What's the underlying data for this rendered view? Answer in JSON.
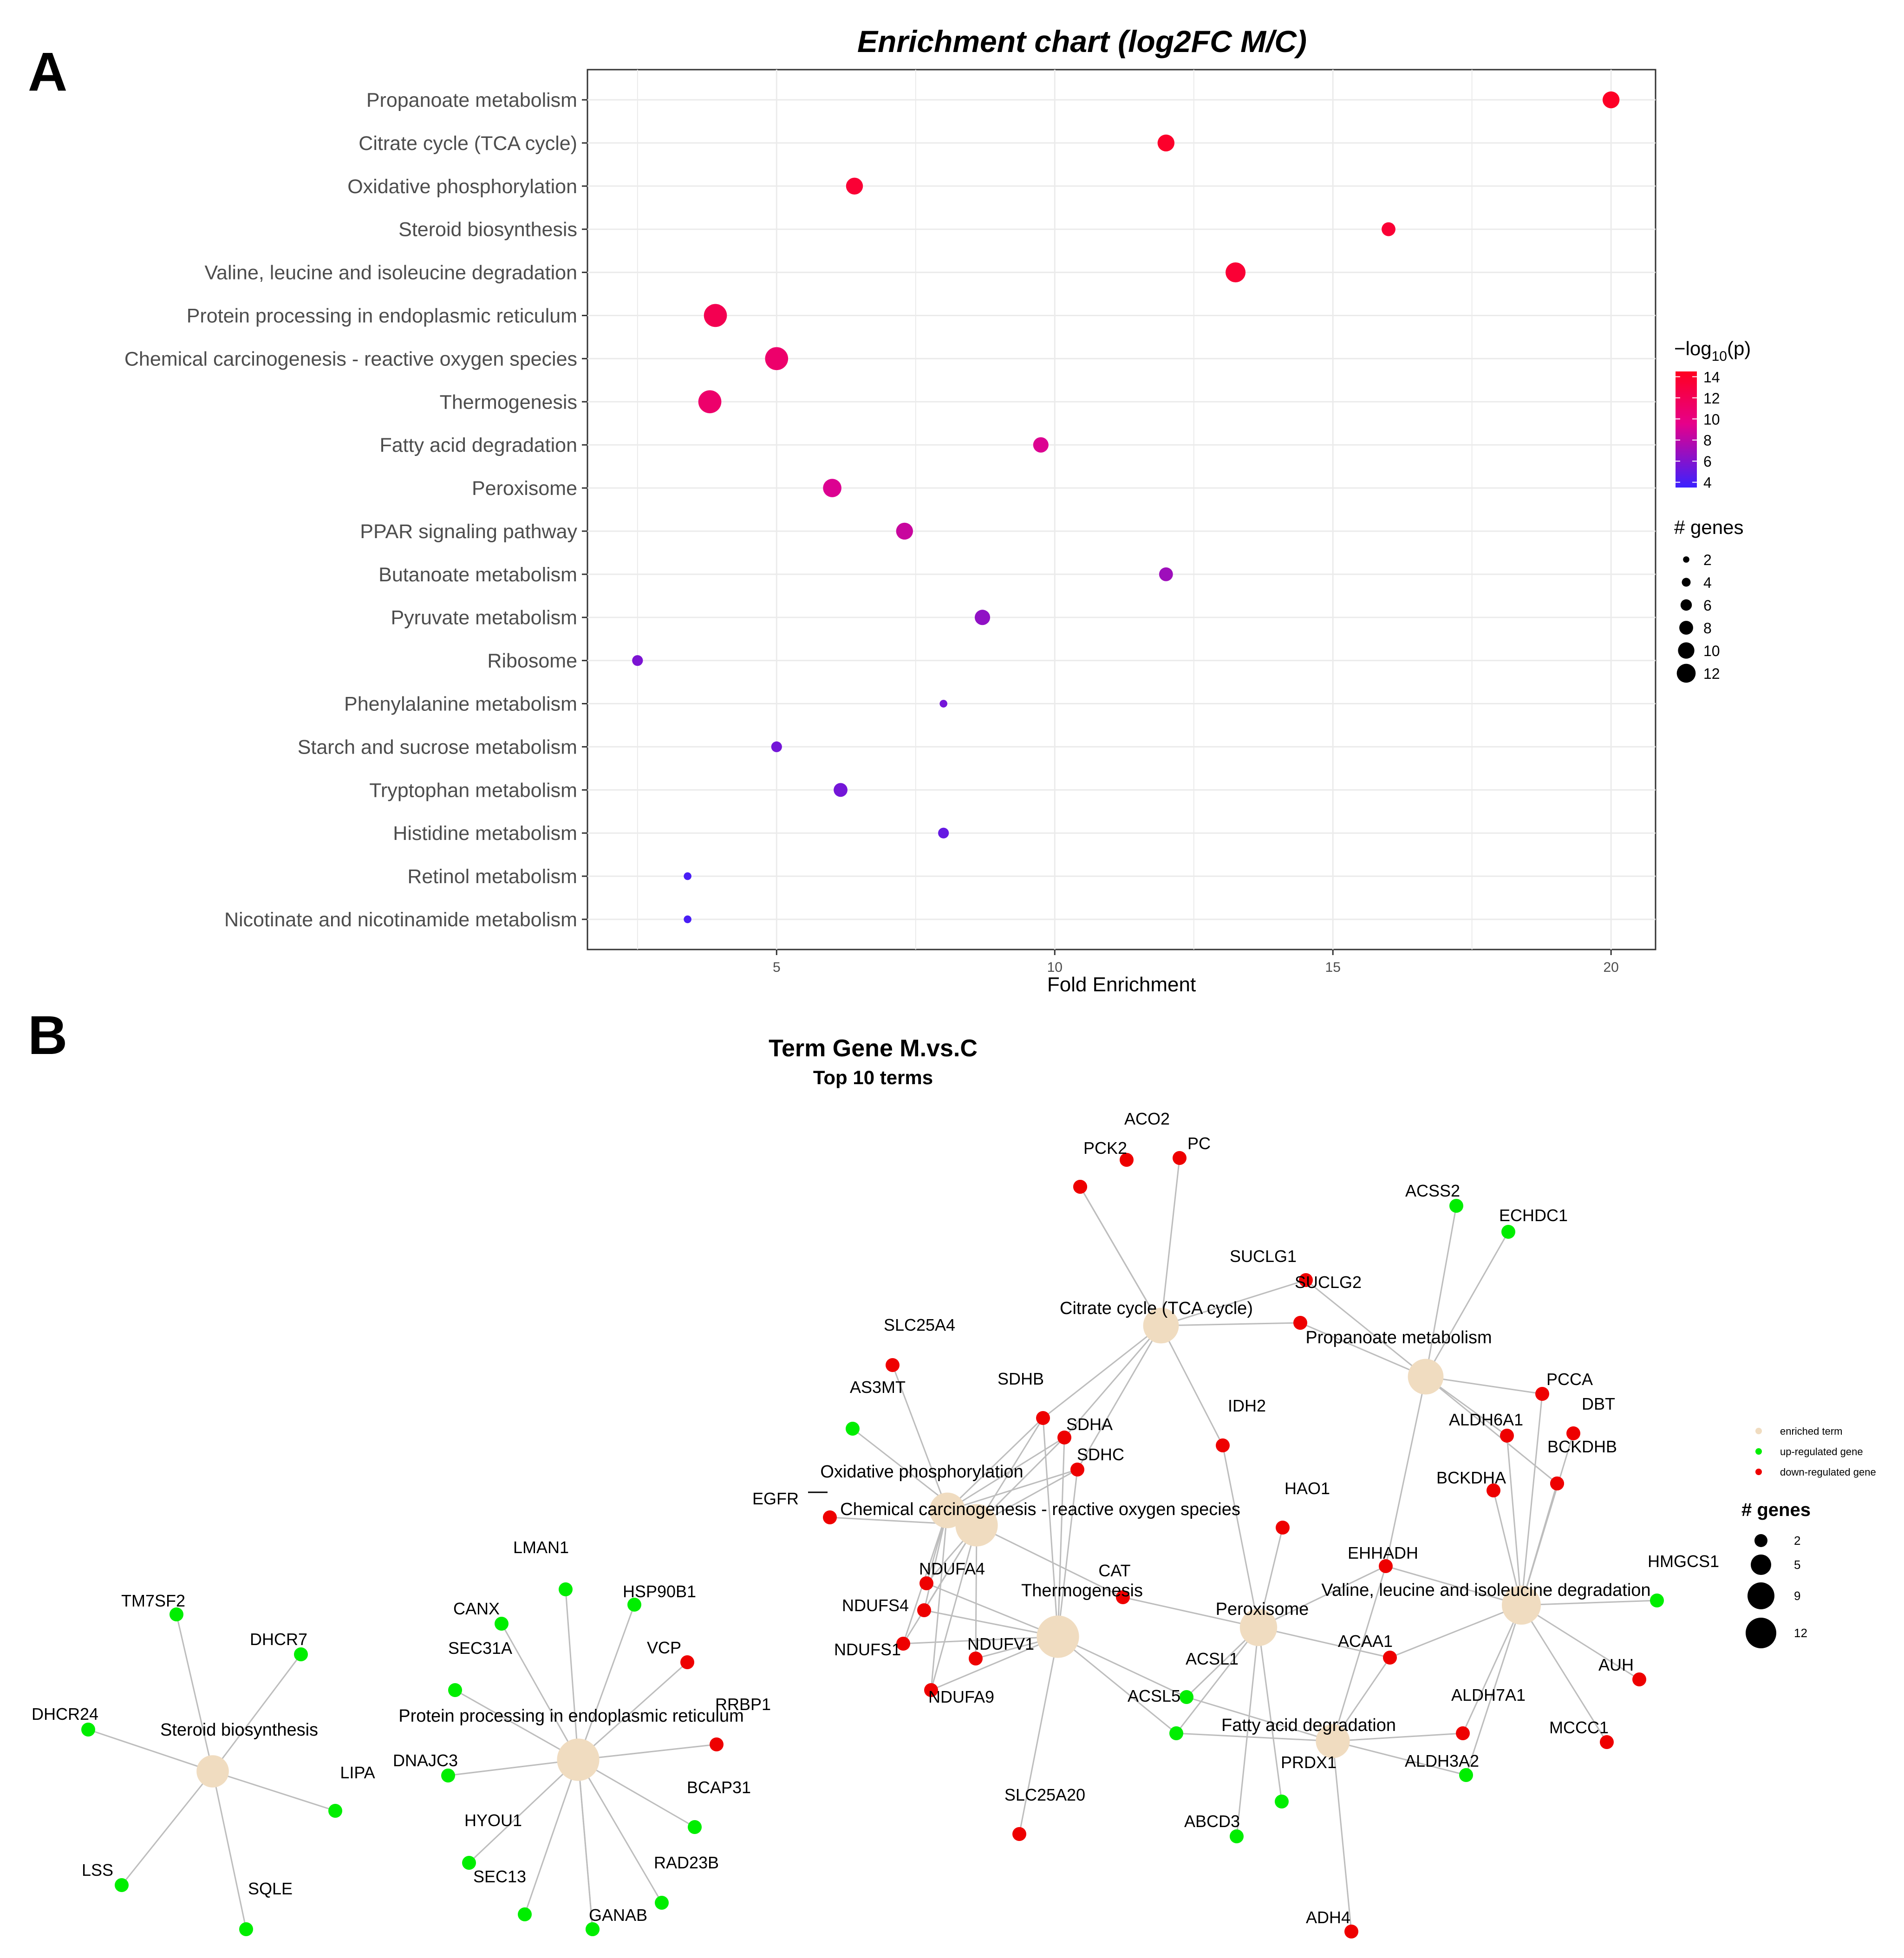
{
  "panels": {
    "a_label": "A",
    "b_label": "B"
  },
  "chart_data": [
    {
      "type": "scatter",
      "title": "Enrichment chart (log2FC M/C)",
      "xlabel": "Fold Enrichment",
      "ylabel": "",
      "xlim": [
        1.6,
        20.8
      ],
      "x_ticks": [
        5,
        10,
        15,
        20
      ],
      "x_tick_labels": [
        "5",
        "10",
        "15",
        "20"
      ],
      "grid": true,
      "legend_placement": "right",
      "color_legend": {
        "title_prefix": "−log",
        "title_sub": "10",
        "title_suffix": "(p)",
        "ticks": [
          14,
          12,
          10,
          8,
          6,
          4
        ],
        "tick_labels": [
          "14",
          "12",
          "10",
          "8",
          "6",
          "4"
        ],
        "range": [
          3.5,
          14.5
        ],
        "low_color": "#3b21ff",
        "mid_color": "#e6008a",
        "high_color": "#ff0020"
      },
      "size_legend": {
        "title": "# genes",
        "values": [
          2,
          4,
          6,
          8,
          10,
          12
        ],
        "labels": [
          "2",
          "4",
          "6",
          "8",
          "10",
          "12"
        ]
      },
      "points": [
        {
          "term": "Propanoate metabolism",
          "fold_enrichment": 20.0,
          "neg_log10_p": 14.2,
          "genes": 8
        },
        {
          "term": "Citrate cycle (TCA cycle)",
          "fold_enrichment": 12.0,
          "neg_log10_p": 14.0,
          "genes": 8
        },
        {
          "term": "Oxidative phosphorylation",
          "fold_enrichment": 6.4,
          "neg_log10_p": 13.5,
          "genes": 8
        },
        {
          "term": "Steroid biosynthesis",
          "fold_enrichment": 16.0,
          "neg_log10_p": 13.5,
          "genes": 6
        },
        {
          "term": "Valine, leucine and isoleucine degradation",
          "fold_enrichment": 13.25,
          "neg_log10_p": 13.5,
          "genes": 10
        },
        {
          "term": "Protein processing in endoplasmic reticulum",
          "fold_enrichment": 3.9,
          "neg_log10_p": 12.2,
          "genes": 12
        },
        {
          "term": "Chemical carcinogenesis - reactive oxygen species",
          "fold_enrichment": 5.0,
          "neg_log10_p": 11.0,
          "genes": 12
        },
        {
          "term": "Thermogenesis",
          "fold_enrichment": 3.8,
          "neg_log10_p": 11.0,
          "genes": 12
        },
        {
          "term": "Fatty acid degradation",
          "fold_enrichment": 9.75,
          "neg_log10_p": 9.2,
          "genes": 7
        },
        {
          "term": "Peroxisome",
          "fold_enrichment": 6.0,
          "neg_log10_p": 9.2,
          "genes": 9
        },
        {
          "term": "PPAR signaling pathway",
          "fold_enrichment": 7.3,
          "neg_log10_p": 8.5,
          "genes": 8
        },
        {
          "term": "Butanoate metabolism",
          "fold_enrichment": 12.0,
          "neg_log10_p": 7.0,
          "genes": 6
        },
        {
          "term": "Pyruvate metabolism",
          "fold_enrichment": 8.7,
          "neg_log10_p": 6.5,
          "genes": 7
        },
        {
          "term": "Ribosome",
          "fold_enrichment": 2.5,
          "neg_log10_p": 5.8,
          "genes": 4
        },
        {
          "term": "Phenylalanine metabolism",
          "fold_enrichment": 8.0,
          "neg_log10_p": 5.5,
          "genes": 2
        },
        {
          "term": "Starch and sucrose metabolism",
          "fold_enrichment": 5.0,
          "neg_log10_p": 5.5,
          "genes": 4
        },
        {
          "term": "Tryptophan metabolism",
          "fold_enrichment": 6.15,
          "neg_log10_p": 5.5,
          "genes": 6
        },
        {
          "term": "Histidine metabolism",
          "fold_enrichment": 8.0,
          "neg_log10_p": 5.0,
          "genes": 4
        },
        {
          "term": "Retinol metabolism",
          "fold_enrichment": 3.4,
          "neg_log10_p": 4.0,
          "genes": 2
        },
        {
          "term": "Nicotinate and nicotinamide metabolism",
          "fold_enrichment": 3.4,
          "neg_log10_p": 4.0,
          "genes": 2
        }
      ]
    },
    {
      "type": "network",
      "title": "Term Gene  M.vs.C",
      "subtitle": "Top 10 terms",
      "node_legend": [
        {
          "label": "enriched term",
          "color": "#f0dcc0"
        },
        {
          "label": "up-regulated gene",
          "color": "#00ee00"
        },
        {
          "label": "down-regulated gene",
          "color": "#ee0000"
        }
      ],
      "size_legend": {
        "title": "# genes",
        "values": [
          2,
          5,
          9,
          12
        ],
        "labels": [
          "2",
          "5",
          "9",
          "12"
        ]
      },
      "terms": [
        {
          "id": "SB",
          "label": "Steroid biosynthesis",
          "genes": 6
        },
        {
          "id": "PP",
          "label": "Protein processing in endoplasmic reticulum",
          "genes": 12
        },
        {
          "id": "OX",
          "label": "Oxidative phosphorylation",
          "genes": 8
        },
        {
          "id": "CC",
          "label": "Chemical carcinogenesis - reactive oxygen species",
          "genes": 12
        },
        {
          "id": "TCA",
          "label": "Citrate cycle (TCA cycle)",
          "genes": 8
        },
        {
          "id": "PM",
          "label": "Propanoate metabolism",
          "genes": 8
        },
        {
          "id": "TH",
          "label": "Thermogenesis",
          "genes": 12
        },
        {
          "id": "PX",
          "label": "Peroxisome",
          "genes": 9
        },
        {
          "id": "VL",
          "label": "Valine, leucine and isoleucine degradation",
          "genes": 10
        },
        {
          "id": "FA",
          "label": "Fatty acid degradation",
          "genes": 7
        }
      ],
      "genes": [
        {
          "id": "TM7SF2",
          "label": "TM7SF2",
          "reg": "up"
        },
        {
          "id": "DHCR7",
          "label": "DHCR7",
          "reg": "up"
        },
        {
          "id": "DHCR24",
          "label": "DHCR24",
          "reg": "up"
        },
        {
          "id": "LIPA",
          "label": "LIPA",
          "reg": "up"
        },
        {
          "id": "LSS",
          "label": "LSS",
          "reg": "up"
        },
        {
          "id": "SQLE",
          "label": "SQLE",
          "reg": "up"
        },
        {
          "id": "LMAN1",
          "label": "LMAN1",
          "reg": "up"
        },
        {
          "id": "HSP90B1",
          "label": "HSP90B1",
          "reg": "up"
        },
        {
          "id": "CANX",
          "label": "CANX",
          "reg": "up"
        },
        {
          "id": "SEC31A",
          "label": "SEC31A",
          "reg": "up"
        },
        {
          "id": "VCP",
          "label": "VCP",
          "reg": "down"
        },
        {
          "id": "RRBP1",
          "label": "RRBP1",
          "reg": "down"
        },
        {
          "id": "DNAJC3",
          "label": "DNAJC3",
          "reg": "up"
        },
        {
          "id": "BCAP31",
          "label": "BCAP31",
          "reg": "up"
        },
        {
          "id": "HYOU1",
          "label": "HYOU1",
          "reg": "up"
        },
        {
          "id": "SEC13",
          "label": "SEC13",
          "reg": "up"
        },
        {
          "id": "RAD23B",
          "label": "RAD23B",
          "reg": "up"
        },
        {
          "id": "GANAB",
          "label": "GANAB",
          "reg": "up"
        },
        {
          "id": "PP_X",
          "label": "",
          "reg": "up"
        },
        {
          "id": "ACO2",
          "label": "ACO2",
          "reg": "down"
        },
        {
          "id": "PCK2",
          "label": "PCK2",
          "reg": "down"
        },
        {
          "id": "PC",
          "label": "PC",
          "reg": "down"
        },
        {
          "id": "PCK_X",
          "label": "",
          "reg": "down"
        },
        {
          "id": "SUCLG1",
          "label": "SUCLG1",
          "reg": "down"
        },
        {
          "id": "SUCLG2",
          "label": "SUCLG2",
          "reg": "down"
        },
        {
          "id": "ACSS2",
          "label": "ACSS2",
          "reg": "up"
        },
        {
          "id": "ECHDC1",
          "label": "ECHDC1",
          "reg": "up"
        },
        {
          "id": "SLC25A4",
          "label": "SLC25A4",
          "reg": "down"
        },
        {
          "id": "AS3MT",
          "label": "AS3MT",
          "reg": "up"
        },
        {
          "id": "SDHB",
          "label": "SDHB",
          "reg": "down"
        },
        {
          "id": "SDHA",
          "label": "SDHA",
          "reg": "down"
        },
        {
          "id": "SDHC",
          "label": "SDHC",
          "reg": "down"
        },
        {
          "id": "IDH2",
          "label": "IDH2",
          "reg": "down"
        },
        {
          "id": "PCCA",
          "label": "PCCA",
          "reg": "down"
        },
        {
          "id": "DBT",
          "label": "DBT",
          "reg": "down"
        },
        {
          "id": "ALDH6A1",
          "label": "ALDH6A1",
          "reg": "down"
        },
        {
          "id": "BCKDHB",
          "label": "BCKDHB",
          "reg": "down"
        },
        {
          "id": "BCKDHA",
          "label": "BCKDHA",
          "reg": "down"
        },
        {
          "id": "BCK_X",
          "label": "",
          "reg": "down"
        },
        {
          "id": "EGFR",
          "label": "EGFR",
          "reg": "down"
        },
        {
          "id": "HAO1",
          "label": "HAO1",
          "reg": "down"
        },
        {
          "id": "EHHADH",
          "label": "EHHADH",
          "reg": "down"
        },
        {
          "id": "HMGCS1",
          "label": "HMGCS1",
          "reg": "up"
        },
        {
          "id": "NDUFA4",
          "label": "NDUFA4",
          "reg": "down"
        },
        {
          "id": "CAT",
          "label": "CAT",
          "reg": "down"
        },
        {
          "id": "NDUFS4",
          "label": "NDUFS4",
          "reg": "down"
        },
        {
          "id": "NDUFS1",
          "label": "NDUFS1",
          "reg": "down"
        },
        {
          "id": "NDUFV1",
          "label": "NDUFV1",
          "reg": "down"
        },
        {
          "id": "NDUFA9",
          "label": "NDUFA9",
          "reg": "down"
        },
        {
          "id": "ACAA1",
          "label": "ACAA1",
          "reg": "down"
        },
        {
          "id": "ACSL1",
          "label": "ACSL1",
          "reg": "up"
        },
        {
          "id": "ACSL5",
          "label": "ACSL5",
          "reg": "up"
        },
        {
          "id": "AUH",
          "label": "AUH",
          "reg": "down"
        },
        {
          "id": "ALDH7A1",
          "label": "ALDH7A1",
          "reg": "down"
        },
        {
          "id": "MCCC1",
          "label": "MCCC1",
          "reg": "down"
        },
        {
          "id": "ALDH3A2",
          "label": "ALDH3A2",
          "reg": "up"
        },
        {
          "id": "PRDX1",
          "label": "PRDX1",
          "reg": "up"
        },
        {
          "id": "SLC25A20",
          "label": "SLC25A20",
          "reg": "down"
        },
        {
          "id": "ABCD3",
          "label": "ABCD3",
          "reg": "up"
        },
        {
          "id": "ADH4",
          "label": "ADH4",
          "reg": "down"
        }
      ],
      "edges": [
        [
          "SB",
          "TM7SF2"
        ],
        [
          "SB",
          "DHCR7"
        ],
        [
          "SB",
          "DHCR24"
        ],
        [
          "SB",
          "LIPA"
        ],
        [
          "SB",
          "LSS"
        ],
        [
          "SB",
          "SQLE"
        ],
        [
          "PP",
          "LMAN1"
        ],
        [
          "PP",
          "HSP90B1"
        ],
        [
          "PP",
          "CANX"
        ],
        [
          "PP",
          "SEC31A"
        ],
        [
          "PP",
          "VCP"
        ],
        [
          "PP",
          "RRBP1"
        ],
        [
          "PP",
          "DNAJC3"
        ],
        [
          "PP",
          "BCAP31"
        ],
        [
          "PP",
          "HYOU1"
        ],
        [
          "PP",
          "SEC13"
        ],
        [
          "PP",
          "RAD23B"
        ],
        [
          "PP",
          "GANAB"
        ],
        [
          "PP",
          "PP_X"
        ],
        [
          "TCA",
          "PCK_X"
        ],
        [
          "TCA",
          "PCK2"
        ],
        [
          "TCA",
          "PC"
        ],
        [
          "TCA",
          "SUCLG1"
        ],
        [
          "TCA",
          "SUCLG2"
        ],
        [
          "TCA",
          "SDHB"
        ],
        [
          "TCA",
          "SDHA"
        ],
        [
          "TCA",
          "SDHC"
        ],
        [
          "TCA",
          "IDH2"
        ],
        [
          "PM",
          "SUCLG1"
        ],
        [
          "PM",
          "SUCLG2"
        ],
        [
          "PM",
          "ACSS2"
        ],
        [
          "PM",
          "ECHDC1"
        ],
        [
          "PM",
          "PCCA"
        ],
        [
          "PM",
          "BCKDHB"
        ],
        [
          "PM",
          "ALDH6A1"
        ],
        [
          "PM",
          "EHHADH"
        ],
        [
          "OX",
          "SLC25A4"
        ],
        [
          "OX",
          "SDHB"
        ],
        [
          "OX",
          "SDHA"
        ],
        [
          "OX",
          "SDHC"
        ],
        [
          "OX",
          "NDUFA4"
        ],
        [
          "OX",
          "NDUFS4"
        ],
        [
          "OX",
          "NDUFS1"
        ],
        [
          "OX",
          "NDUFA9"
        ],
        [
          "CC",
          "SDHB"
        ],
        [
          "CC",
          "SDHA"
        ],
        [
          "CC",
          "SDHC"
        ],
        [
          "CC",
          "EGFR"
        ],
        [
          "CC",
          "NDUFA4"
        ],
        [
          "CC",
          "NDUFS4"
        ],
        [
          "CC",
          "NDUFS1"
        ],
        [
          "CC",
          "NDUFV1"
        ],
        [
          "CC",
          "NDUFA9"
        ],
        [
          "CC",
          "AS3MT"
        ],
        [
          "CC",
          "CAT"
        ],
        [
          "TH",
          "SDHB"
        ],
        [
          "TH",
          "SDHA"
        ],
        [
          "TH",
          "SDHC"
        ],
        [
          "TH",
          "NDUFA4"
        ],
        [
          "TH",
          "NDUFS4"
        ],
        [
          "TH",
          "NDUFS1"
        ],
        [
          "TH",
          "NDUFV1"
        ],
        [
          "TH",
          "NDUFA9"
        ],
        [
          "TH",
          "SLC25A20"
        ],
        [
          "TH",
          "ACSL1"
        ],
        [
          "TH",
          "ACSL5"
        ],
        [
          "PX",
          "IDH2"
        ],
        [
          "PX",
          "HAO1"
        ],
        [
          "PX",
          "CAT"
        ],
        [
          "PX",
          "EHHADH"
        ],
        [
          "PX",
          "ACAA1"
        ],
        [
          "PX",
          "ACSL1"
        ],
        [
          "PX",
          "ACSL5"
        ],
        [
          "PX",
          "PRDX1"
        ],
        [
          "PX",
          "ABCD3"
        ],
        [
          "VL",
          "PCCA"
        ],
        [
          "VL",
          "DBT"
        ],
        [
          "VL",
          "ALDH6A1"
        ],
        [
          "VL",
          "BCKDHB"
        ],
        [
          "VL",
          "BCKDHA"
        ],
        [
          "VL",
          "BCK_X"
        ],
        [
          "VL",
          "HMGCS1"
        ],
        [
          "VL",
          "EHHADH"
        ],
        [
          "VL",
          "ACAA1"
        ],
        [
          "VL",
          "AUH"
        ],
        [
          "VL",
          "MCCC1"
        ],
        [
          "VL",
          "ALDH7A1"
        ],
        [
          "VL",
          "ALDH3A2"
        ],
        [
          "FA",
          "ACSL1"
        ],
        [
          "FA",
          "ACSL5"
        ],
        [
          "FA",
          "EHHADH"
        ],
        [
          "FA",
          "ACAA1"
        ],
        [
          "FA",
          "ALDH7A1"
        ],
        [
          "FA",
          "ALDH3A2"
        ],
        [
          "FA",
          "ADH4"
        ]
      ]
    }
  ]
}
